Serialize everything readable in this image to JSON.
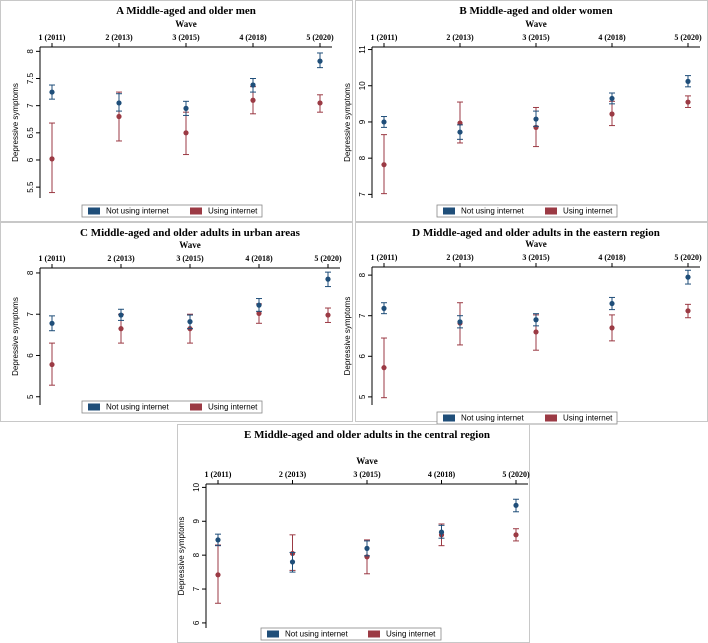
{
  "colors": {
    "not_using": "#1f4e79",
    "using": "#9b3a44",
    "axis": "#000000",
    "border": "#c8c8c8"
  },
  "legend": {
    "not_using_label": "Not using internet",
    "using_label": "Using internet"
  },
  "chart_data": [
    {
      "type": "scatter",
      "panel": "A",
      "title": "A  Middle-aged and older men",
      "xlabel": "Wave",
      "ylabel": "Depressive symptoms",
      "categories": [
        "1 (2011)",
        "2 (2013)",
        "3 (2015)",
        "4 (2018)",
        "5 (2020)"
      ],
      "yticks": [
        5.5,
        6,
        6.5,
        7,
        7.5,
        8
      ],
      "ylim": [
        5.3,
        8.08
      ],
      "series": [
        {
          "name": "Not using internet",
          "values": [
            7.25,
            7.05,
            6.95,
            7.38,
            7.82
          ],
          "lower": [
            7.12,
            6.9,
            6.82,
            7.25,
            7.7
          ],
          "upper": [
            7.38,
            7.22,
            7.08,
            7.5,
            7.97
          ]
        },
        {
          "name": "Using internet",
          "values": [
            6.02,
            6.8,
            6.5,
            7.1,
            7.05
          ],
          "lower": [
            5.4,
            6.35,
            6.1,
            6.85,
            6.88
          ],
          "upper": [
            6.68,
            7.25,
            6.88,
            7.35,
            7.2
          ]
        }
      ]
    },
    {
      "type": "scatter",
      "panel": "B",
      "title": "B  Middle-aged and older women",
      "xlabel": "Wave",
      "ylabel": "Depressive symptoms",
      "categories": [
        "1 (2011)",
        "2 (2013)",
        "3 (2015)",
        "4 (2018)",
        "5 (2020)"
      ],
      "yticks": [
        7,
        8,
        9,
        10,
        11
      ],
      "ylim": [
        6.9,
        11.07
      ],
      "series": [
        {
          "name": "Not using internet",
          "values": [
            9.0,
            8.72,
            9.08,
            9.65,
            10.12
          ],
          "lower": [
            8.85,
            8.52,
            8.88,
            9.5,
            9.97
          ],
          "upper": [
            9.15,
            8.92,
            9.3,
            9.8,
            10.28
          ]
        },
        {
          "name": "Using internet",
          "values": [
            7.82,
            8.97,
            8.85,
            9.22,
            9.55
          ],
          "lower": [
            7.02,
            8.42,
            8.32,
            8.9,
            9.4
          ],
          "upper": [
            8.65,
            9.55,
            9.4,
            9.57,
            9.72
          ]
        }
      ]
    },
    {
      "type": "scatter",
      "panel": "C",
      "title": "C  Middle-aged and older adults in urban areas",
      "xlabel": "Wave",
      "ylabel": "Depressive symptoms",
      "categories": [
        "1 (2011)",
        "2 (2013)",
        "3 (2015)",
        "4 (2018)",
        "5 (2020)"
      ],
      "yticks": [
        5,
        6,
        7,
        8
      ],
      "ylim": [
        4.8,
        8.12
      ],
      "series": [
        {
          "name": "Not using internet",
          "values": [
            6.78,
            6.98,
            6.82,
            7.22,
            7.85
          ],
          "lower": [
            6.6,
            6.85,
            6.65,
            7.07,
            7.67
          ],
          "upper": [
            6.96,
            7.12,
            6.98,
            7.38,
            8.02
          ]
        },
        {
          "name": "Using internet",
          "values": [
            5.78,
            6.65,
            6.65,
            7.02,
            6.98
          ],
          "lower": [
            5.28,
            6.3,
            6.3,
            6.78,
            6.8
          ],
          "upper": [
            6.3,
            7.0,
            7.0,
            7.25,
            7.15
          ]
        }
      ]
    },
    {
      "type": "scatter",
      "panel": "D",
      "title": "D  Middle-aged and older adults in the eastern region",
      "xlabel": "Wave",
      "ylabel": "Depressive symptoms",
      "categories": [
        "1 (2011)",
        "2 (2013)",
        "3 (2015)",
        "4 (2018)",
        "5 (2020)"
      ],
      "yticks": [
        5,
        6,
        7,
        8
      ],
      "ylim": [
        4.8,
        8.2
      ],
      "series": [
        {
          "name": "Not using internet",
          "values": [
            7.18,
            6.85,
            6.9,
            7.3,
            7.95
          ],
          "lower": [
            7.05,
            6.7,
            6.75,
            7.15,
            7.78
          ],
          "upper": [
            7.32,
            7.0,
            7.05,
            7.45,
            8.12
          ]
        },
        {
          "name": "Using internet",
          "values": [
            5.72,
            6.82,
            6.6,
            6.7,
            7.12
          ],
          "lower": [
            4.98,
            6.28,
            6.15,
            6.38,
            6.95
          ],
          "upper": [
            6.45,
            7.32,
            7.02,
            7.02,
            7.28
          ]
        }
      ]
    },
    {
      "type": "scatter",
      "panel": "E",
      "title": "E  Middle-aged and older adults in the central region",
      "xlabel": "Wave",
      "ylabel": "Depressive symptoms",
      "categories": [
        "1 (2011)",
        "2 (2013)",
        "3 (2015)",
        "4 (2018)",
        "5 (2020)"
      ],
      "yticks": [
        6,
        7,
        8,
        9,
        10
      ],
      "ylim": [
        5.85,
        10.1
      ],
      "series": [
        {
          "name": "Not using internet",
          "values": [
            8.45,
            7.8,
            8.2,
            8.68,
            9.47
          ],
          "lower": [
            8.28,
            7.5,
            7.98,
            8.5,
            9.28
          ],
          "upper": [
            8.62,
            8.08,
            8.42,
            8.88,
            9.65
          ]
        },
        {
          "name": "Using internet",
          "values": [
            7.42,
            8.05,
            7.95,
            8.6,
            8.6
          ],
          "lower": [
            6.58,
            7.55,
            7.45,
            8.28,
            8.42
          ],
          "upper": [
            8.3,
            8.6,
            8.45,
            8.92,
            8.78
          ]
        }
      ]
    }
  ]
}
